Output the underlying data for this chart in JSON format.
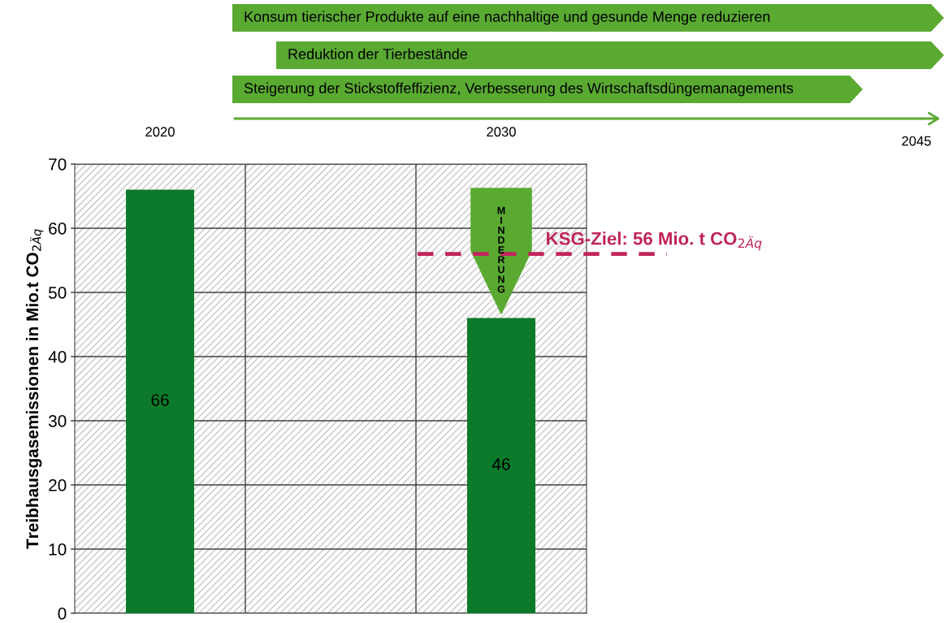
{
  "chart_data": {
    "type": "bar",
    "categories": [
      "2020",
      null,
      "2030"
    ],
    "values": [
      66,
      null,
      46
    ],
    "color": "#0b7a2b",
    "data_labels": true,
    "ylabel": "Treibhausgasemissionen in Mio.t CO$_{2Äq}$",
    "ylim": [
      0,
      70
    ],
    "yticks": [
      0,
      10,
      20,
      30,
      40,
      50,
      60,
      70
    ],
    "grid": true,
    "ref_lines": [
      {
        "axis": "y",
        "value": 56,
        "label": "KSG-Ziel: 56 Mio. t CO$_{2Äq}$",
        "color": "#c0245c",
        "line_style": "dashed"
      }
    ],
    "annotations": [
      "Konsum tierischer Produkte auf eine nachhaltige und gesunde Menge reduzieren",
      "Reduktion der Tierbestände",
      "Steigerung der Stickstoffeffizienz, Verbesserung des Wirtschaftsdüngemanagements",
      "2045",
      "MINDERUNG"
    ]
  }
}
